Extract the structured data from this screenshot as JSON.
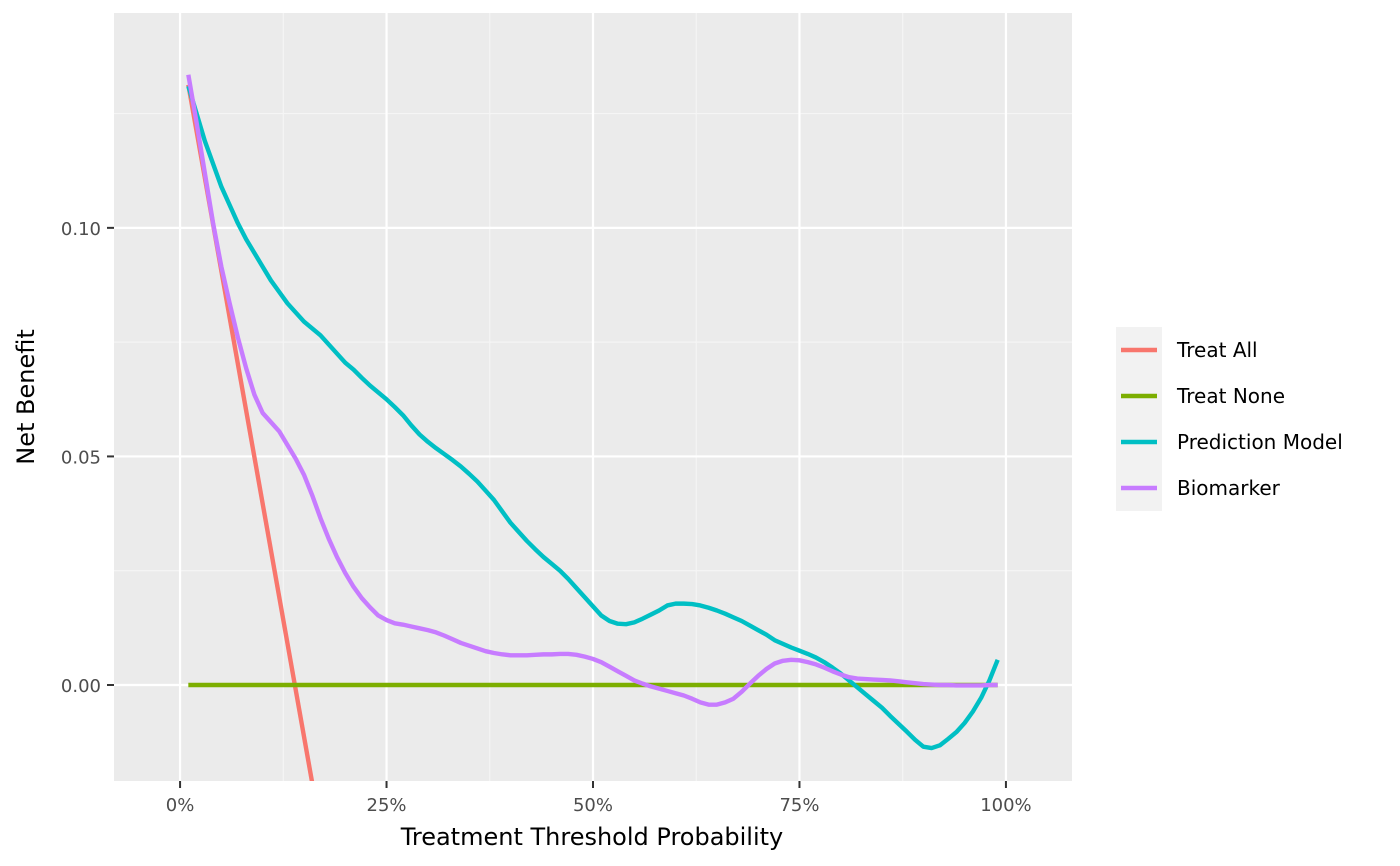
{
  "chart_data": {
    "type": "line",
    "title": "",
    "xlabel": "Treatment Threshold Probability",
    "ylabel": "Net Benefit",
    "xlim": [
      -0.08,
      1.08
    ],
    "ylim": [
      -0.021,
      0.147
    ],
    "x_ticks": [
      0,
      0.25,
      0.5,
      0.75,
      1.0
    ],
    "x_tick_labels": [
      "0%",
      "25%",
      "50%",
      "75%",
      "100%"
    ],
    "y_ticks": [
      0.0,
      0.05,
      0.1
    ],
    "y_tick_labels": [
      "0.00",
      "0.05",
      "0.10"
    ],
    "grid": true,
    "legend_position": "right",
    "series": [
      {
        "name": "Treat All",
        "color": "#F8766D",
        "x": [
          0.01,
          0.16
        ],
        "y": [
          0.1313,
          -0.0214
        ]
      },
      {
        "name": "Treat None",
        "color": "#7CAE00",
        "x": [
          0.01,
          0.99
        ],
        "y": [
          0.0,
          0.0
        ]
      },
      {
        "name": "Prediction Model",
        "color": "#00BFC4",
        "x": [
          0.01,
          0.02,
          0.03,
          0.04,
          0.05,
          0.06,
          0.07,
          0.08,
          0.09,
          0.1,
          0.11,
          0.12,
          0.13,
          0.14,
          0.15,
          0.16,
          0.17,
          0.18,
          0.19,
          0.2,
          0.21,
          0.22,
          0.23,
          0.24,
          0.25,
          0.26,
          0.27,
          0.28,
          0.29,
          0.3,
          0.31,
          0.32,
          0.33,
          0.34,
          0.35,
          0.36,
          0.37,
          0.38,
          0.39,
          0.4,
          0.41,
          0.42,
          0.43,
          0.44,
          0.45,
          0.46,
          0.47,
          0.48,
          0.49,
          0.5,
          0.51,
          0.52,
          0.53,
          0.54,
          0.55,
          0.56,
          0.57,
          0.58,
          0.59,
          0.6,
          0.61,
          0.62,
          0.63,
          0.64,
          0.65,
          0.66,
          0.67,
          0.68,
          0.69,
          0.7,
          0.71,
          0.72,
          0.73,
          0.74,
          0.75,
          0.76,
          0.77,
          0.78,
          0.79,
          0.8,
          0.81,
          0.82,
          0.83,
          0.84,
          0.85,
          0.86,
          0.87,
          0.88,
          0.89,
          0.9,
          0.91,
          0.92,
          0.93,
          0.94,
          0.95,
          0.96,
          0.97,
          0.98,
          0.99
        ],
        "y": [
          0.131,
          0.125,
          0.119,
          0.114,
          0.109,
          0.105,
          0.101,
          0.0975,
          0.0945,
          0.0915,
          0.0885,
          0.086,
          0.0835,
          0.0815,
          0.0795,
          0.078,
          0.0765,
          0.0745,
          0.0725,
          0.0705,
          0.069,
          0.0672,
          0.0655,
          0.064,
          0.0625,
          0.0608,
          0.059,
          0.0568,
          0.0548,
          0.0532,
          0.0518,
          0.0505,
          0.0492,
          0.0478,
          0.0462,
          0.0445,
          0.0425,
          0.0405,
          0.038,
          0.0355,
          0.0335,
          0.0315,
          0.0297,
          0.028,
          0.0265,
          0.025,
          0.0232,
          0.0212,
          0.0192,
          0.0172,
          0.0152,
          0.014,
          0.0134,
          0.0133,
          0.0137,
          0.0145,
          0.0154,
          0.0163,
          0.0174,
          0.0178,
          0.0178,
          0.0177,
          0.0174,
          0.0169,
          0.0163,
          0.0156,
          0.0148,
          0.014,
          0.013,
          0.012,
          0.011,
          0.0098,
          0.009,
          0.0082,
          0.0075,
          0.0068,
          0.006,
          0.005,
          0.0038,
          0.0025,
          0.001,
          -0.0005,
          -0.002,
          -0.0035,
          -0.005,
          -0.0068,
          -0.0085,
          -0.0102,
          -0.012,
          -0.0135,
          -0.0138,
          -0.0132,
          -0.0118,
          -0.0103,
          -0.0083,
          -0.0058,
          -0.0028,
          0.001,
          0.0055
        ]
      },
      {
        "name": "Biomarker",
        "color": "#C77CFF",
        "x": [
          0.01,
          0.02,
          0.03,
          0.04,
          0.05,
          0.06,
          0.07,
          0.08,
          0.09,
          0.1,
          0.11,
          0.12,
          0.13,
          0.14,
          0.15,
          0.16,
          0.17,
          0.18,
          0.19,
          0.2,
          0.21,
          0.22,
          0.23,
          0.24,
          0.25,
          0.26,
          0.27,
          0.28,
          0.29,
          0.3,
          0.31,
          0.32,
          0.33,
          0.34,
          0.35,
          0.36,
          0.37,
          0.38,
          0.39,
          0.4,
          0.41,
          0.42,
          0.43,
          0.44,
          0.45,
          0.46,
          0.47,
          0.48,
          0.49,
          0.5,
          0.51,
          0.52,
          0.53,
          0.54,
          0.55,
          0.56,
          0.57,
          0.58,
          0.59,
          0.6,
          0.61,
          0.62,
          0.63,
          0.64,
          0.65,
          0.66,
          0.67,
          0.68,
          0.69,
          0.7,
          0.71,
          0.72,
          0.73,
          0.74,
          0.75,
          0.76,
          0.77,
          0.78,
          0.79,
          0.8,
          0.81,
          0.82,
          0.83,
          0.84,
          0.85,
          0.86,
          0.87,
          0.88,
          0.89,
          0.9,
          0.91,
          0.92,
          0.93,
          0.94,
          0.95,
          0.96,
          0.97,
          0.98,
          0.99
        ],
        "y": [
          0.1335,
          0.123,
          0.112,
          0.101,
          0.0915,
          0.0835,
          0.076,
          0.0693,
          0.0635,
          0.0595,
          0.0575,
          0.0555,
          0.0525,
          0.0495,
          0.046,
          0.0415,
          0.0365,
          0.032,
          0.028,
          0.0245,
          0.0215,
          0.019,
          0.017,
          0.0152,
          0.0142,
          0.0135,
          0.0132,
          0.0128,
          0.0124,
          0.012,
          0.0115,
          0.0108,
          0.01,
          0.0092,
          0.0086,
          0.008,
          0.0074,
          0.007,
          0.0067,
          0.0065,
          0.0065,
          0.0065,
          0.0066,
          0.0067,
          0.0067,
          0.0068,
          0.0068,
          0.0066,
          0.0062,
          0.0057,
          0.005,
          0.004,
          0.003,
          0.002,
          0.001,
          0.0003,
          -0.0003,
          -0.0008,
          -0.0013,
          -0.0018,
          -0.0023,
          -0.003,
          -0.0038,
          -0.0043,
          -0.0043,
          -0.0038,
          -0.003,
          -0.0015,
          0.0003,
          0.002,
          0.0035,
          0.0047,
          0.0053,
          0.0055,
          0.0054,
          0.005,
          0.0045,
          0.0038,
          0.003,
          0.0023,
          0.0017,
          0.0014,
          0.0013,
          0.0012,
          0.0011,
          0.001,
          0.0008,
          0.0006,
          0.0004,
          0.0002,
          0.0001,
          0.0,
          0.0,
          -0.0001,
          -0.0001,
          -0.0001,
          -0.0001,
          0.0,
          0.0
        ]
      }
    ],
    "colors": {
      "panel_background": "#EBEBEB",
      "grid_major": "#FFFFFF",
      "grid_minor": "#F5F5F5",
      "tick_text": "#4D4D4D",
      "legend_key_background": "#F2F2F2"
    }
  }
}
